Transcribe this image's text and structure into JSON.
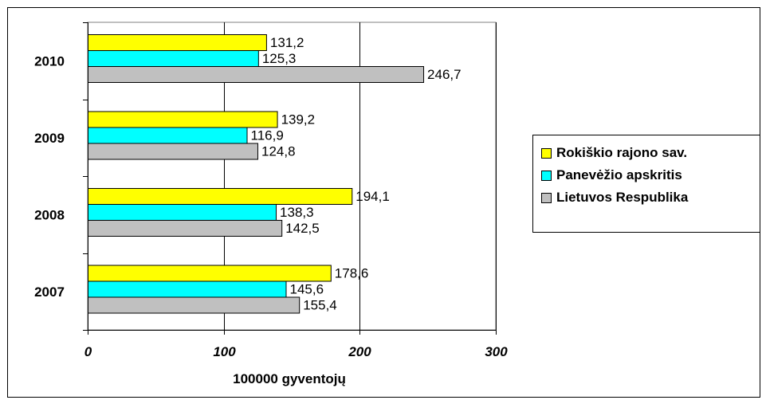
{
  "chart_data": {
    "type": "bar",
    "orientation": "horizontal",
    "categories": [
      "2007",
      "2008",
      "2009",
      "2010"
    ],
    "series": [
      {
        "name": "Rokiškio rajono sav.",
        "color": "#ffff00",
        "values": [
          178.6,
          194.1,
          139.2,
          131.2
        ],
        "labels": [
          "178,6",
          "194,1",
          "139,2",
          "131,2"
        ]
      },
      {
        "name": "Panevėžio apskritis",
        "color": "#00ffff",
        "values": [
          145.6,
          138.3,
          116.9,
          125.3
        ],
        "labels": [
          "145,6",
          "138,3",
          "116,9",
          "125,3"
        ]
      },
      {
        "name": "Lietuvos Respublika",
        "color": "#c0c0c0",
        "values": [
          155.4,
          142.5,
          124.8,
          246.7
        ],
        "labels": [
          "155,4",
          "142,5",
          "124,8",
          "246,7"
        ]
      }
    ],
    "xlabel": "100000 gyventojų",
    "xlim": [
      0,
      300
    ],
    "xticks": [
      0,
      100,
      200,
      300
    ],
    "xtick_labels": [
      "0",
      "100",
      "200",
      "300"
    ],
    "grid": "vertical major gridlines",
    "legend": "right"
  }
}
